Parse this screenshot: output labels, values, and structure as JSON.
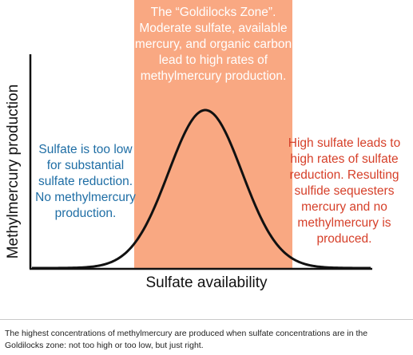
{
  "figure": {
    "zone_text": "The “Goldilocks Zone”. Moderate sulfate, available mercury, and organic carbon lead to high rates of methylmercury production.",
    "left_note": "Sulfate is too low for substantial sulfate reduction. No methylmercury production.",
    "right_note": "High sulfate leads to high rates of sulfate reduction. Resulting sulfide sequesters mercury and no methylmercury is produced.",
    "y_axis_label": "Methylmercury production",
    "x_axis_label": "Sulfate availability",
    "colors": {
      "zone_fill": "#f9a882",
      "left_text": "#1f6ea5",
      "right_text": "#d6402a",
      "curve": "#111111"
    }
  },
  "caption": "The highest concentrations of methylmercury are produced when sulfate concentrations are in the Goldilocks zone: not too high or too low, but just right."
}
